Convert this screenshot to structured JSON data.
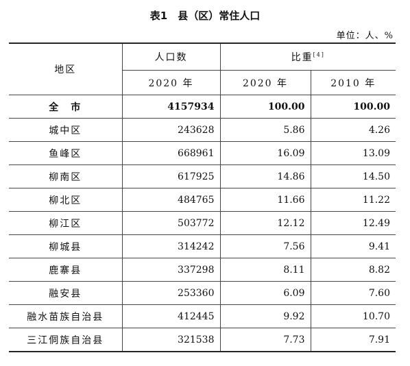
{
  "header": {
    "title": "表1　县（区）常住人口",
    "unit": "单位：人、%"
  },
  "table": {
    "head": {
      "region": "地区",
      "population": "人口数",
      "share": "比重",
      "share_note": "[4]",
      "year_pop": "2020 年",
      "year_a": "2020 年",
      "year_b": "2010 年"
    },
    "rows": [
      [
        "全　市",
        "4157934",
        "100.00",
        "100.00"
      ],
      [
        "城中区",
        "243628",
        "5.86",
        "4.26"
      ],
      [
        "鱼峰区",
        "668961",
        "16.09",
        "13.09"
      ],
      [
        "柳南区",
        "617925",
        "14.86",
        "14.50"
      ],
      [
        "柳北区",
        "484765",
        "11.66",
        "11.22"
      ],
      [
        "柳江区",
        "503772",
        "12.12",
        "12.49"
      ],
      [
        "柳城县",
        "314242",
        "7.56",
        "9.41"
      ],
      [
        "鹿寨县",
        "337298",
        "8.11",
        "8.82"
      ],
      [
        "融安县",
        "253360",
        "6.09",
        "7.60"
      ],
      [
        "融水苗族自治县",
        "412445",
        "9.92",
        "10.70"
      ],
      [
        "三江侗族自治县",
        "321538",
        "7.73",
        "7.91"
      ]
    ]
  }
}
